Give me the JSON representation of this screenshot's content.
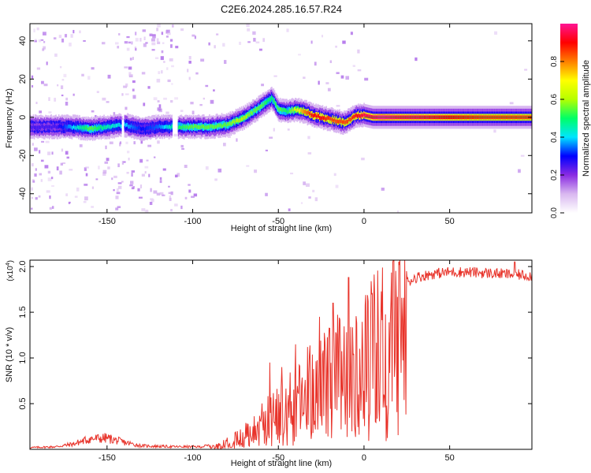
{
  "title": "C2E6.2024.285.16.57.R24",
  "chart_data": [
    {
      "type": "heatmap",
      "xlabel": "Height of straight line (km)",
      "ylabel": "Frequency (Hz)",
      "xlim": [
        -195,
        98
      ],
      "ylim": [
        -50,
        49
      ],
      "x_ticks": [
        -150,
        -100,
        -50,
        0,
        50
      ],
      "y_ticks": [
        -40,
        -20,
        0,
        20,
        40
      ],
      "colorbar": {
        "label": "Normalized spectral amplitude",
        "range": [
          0,
          1
        ],
        "ticks": [
          0.0,
          0.2,
          0.4,
          0.6,
          0.8
        ],
        "colors": [
          "#ffffff",
          "#d9b8f0",
          "#8a2be2",
          "#0000ff",
          "#00e5ff",
          "#00ff66",
          "#b6ff00",
          "#ffff00",
          "#ff7f00",
          "#ff0000",
          "#ff1493"
        ]
      },
      "ridge": {
        "x": [
          -193,
          -180,
          -170,
          -160,
          -150,
          -140,
          -130,
          -120,
          -110,
          -100,
          -90,
          -80,
          -75,
          -70,
          -65,
          -60,
          -57,
          -54,
          -50,
          -45,
          -40,
          -35,
          -30,
          -25,
          -20,
          -15,
          -12,
          -8,
          -5,
          0,
          5,
          10,
          20,
          30,
          50,
          70,
          98
        ],
        "y": [
          -5,
          -5,
          -5,
          -6,
          -5,
          -4,
          -6,
          -5,
          -5,
          -5,
          -5,
          -4,
          -2,
          0,
          3,
          6,
          8,
          10,
          4,
          3,
          4,
          3,
          1,
          0,
          -1,
          -2,
          -3,
          -1,
          1,
          1,
          0,
          0,
          0,
          0,
          0,
          0,
          0
        ],
        "amplitude": [
          0.25,
          0.25,
          0.4,
          0.55,
          0.45,
          0.4,
          0.3,
          0.35,
          0.5,
          0.55,
          0.55,
          0.55,
          0.6,
          0.6,
          0.55,
          0.55,
          0.5,
          0.5,
          0.55,
          0.5,
          0.65,
          0.8,
          0.9,
          0.9,
          0.85,
          0.85,
          0.85,
          0.85,
          0.9,
          0.95,
          0.95,
          1.0,
          0.95,
          0.95,
          0.9,
          0.85,
          0.85
        ]
      }
    },
    {
      "type": "line",
      "xlabel": "Height of straight line (km)",
      "ylabel": "SNR (10 * v/v)",
      "y_multiplier_label": "(x10",
      "y_multiplier_exp": "4",
      "xlim": [
        -195,
        98
      ],
      "ylim": [
        0,
        2.07
      ],
      "y_scale": 10000,
      "x_ticks": [
        -150,
        -100,
        -50,
        0,
        50
      ],
      "y_ticks": [
        0.5,
        1.0,
        1.5,
        2.0
      ],
      "color": "#e8332a",
      "envelope": {
        "x": [
          -195,
          -180,
          -170,
          -160,
          -150,
          -140,
          -130,
          -110,
          -95,
          -85,
          -80,
          -75,
          -70,
          -65,
          -60,
          -55,
          -50,
          -45,
          -40,
          -35,
          -30,
          -25,
          -20,
          -15,
          -10,
          -5,
          0,
          5,
          10,
          20,
          30,
          40,
          50,
          60,
          70,
          80,
          90,
          98
        ],
        "y": [
          0.02,
          0.03,
          0.06,
          0.12,
          0.13,
          0.08,
          0.04,
          0.03,
          0.03,
          0.06,
          0.1,
          0.18,
          0.25,
          0.3,
          0.4,
          0.55,
          0.6,
          0.65,
          0.75,
          0.85,
          0.95,
          1.05,
          1.1,
          1.2,
          1.3,
          1.35,
          1.4,
          1.55,
          1.65,
          1.78,
          1.88,
          1.92,
          1.94,
          1.94,
          1.93,
          1.92,
          1.91,
          1.9
        ]
      },
      "spikes": [
        {
          "x": -55,
          "y": 0.95
        },
        {
          "x": -48,
          "y": 0.9
        },
        {
          "x": -40,
          "y": 1.15
        },
        {
          "x": -33,
          "y": 1.12
        },
        {
          "x": -26,
          "y": 1.45
        },
        {
          "x": -18,
          "y": 1.6
        },
        {
          "x": -9,
          "y": 1.88
        },
        {
          "x": 88,
          "y": 2.05
        }
      ]
    }
  ]
}
